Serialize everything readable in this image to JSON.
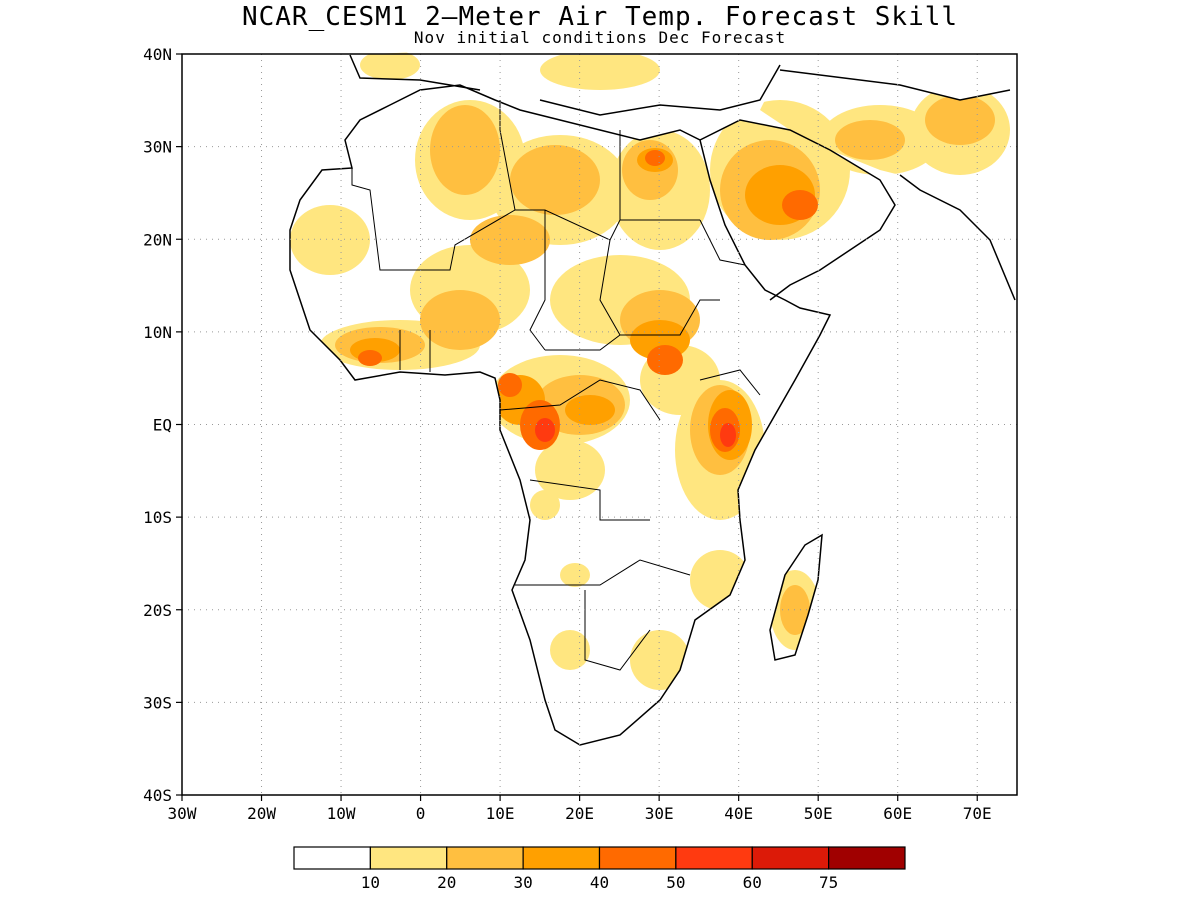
{
  "title": "NCAR_CESM1 2–Meter Air Temp. Forecast Skill",
  "subtitle": "Nov initial conditions  Dec Forecast",
  "map": {
    "region": "Africa and Middle East",
    "lon_range": [
      -30,
      75
    ],
    "lat_range": [
      -40,
      40
    ],
    "grid": true,
    "x_tick_labels": [
      "30W",
      "20W",
      "10W",
      "0",
      "10E",
      "20E",
      "30E",
      "40E",
      "50E",
      "60E",
      "70E"
    ],
    "y_tick_labels": [
      "40N",
      "30N",
      "20N",
      "10N",
      "EQ",
      "10S",
      "20S",
      "30S",
      "40S"
    ]
  },
  "colorbar": {
    "levels": [
      "10",
      "20",
      "30",
      "40",
      "50",
      "60",
      "75"
    ],
    "colors": [
      "#ffffff",
      "#ffe680",
      "#ffbf40",
      "#ffa000",
      "#ff6a00",
      "#ff3a10",
      "#dc1a08",
      "#a00000"
    ]
  }
}
